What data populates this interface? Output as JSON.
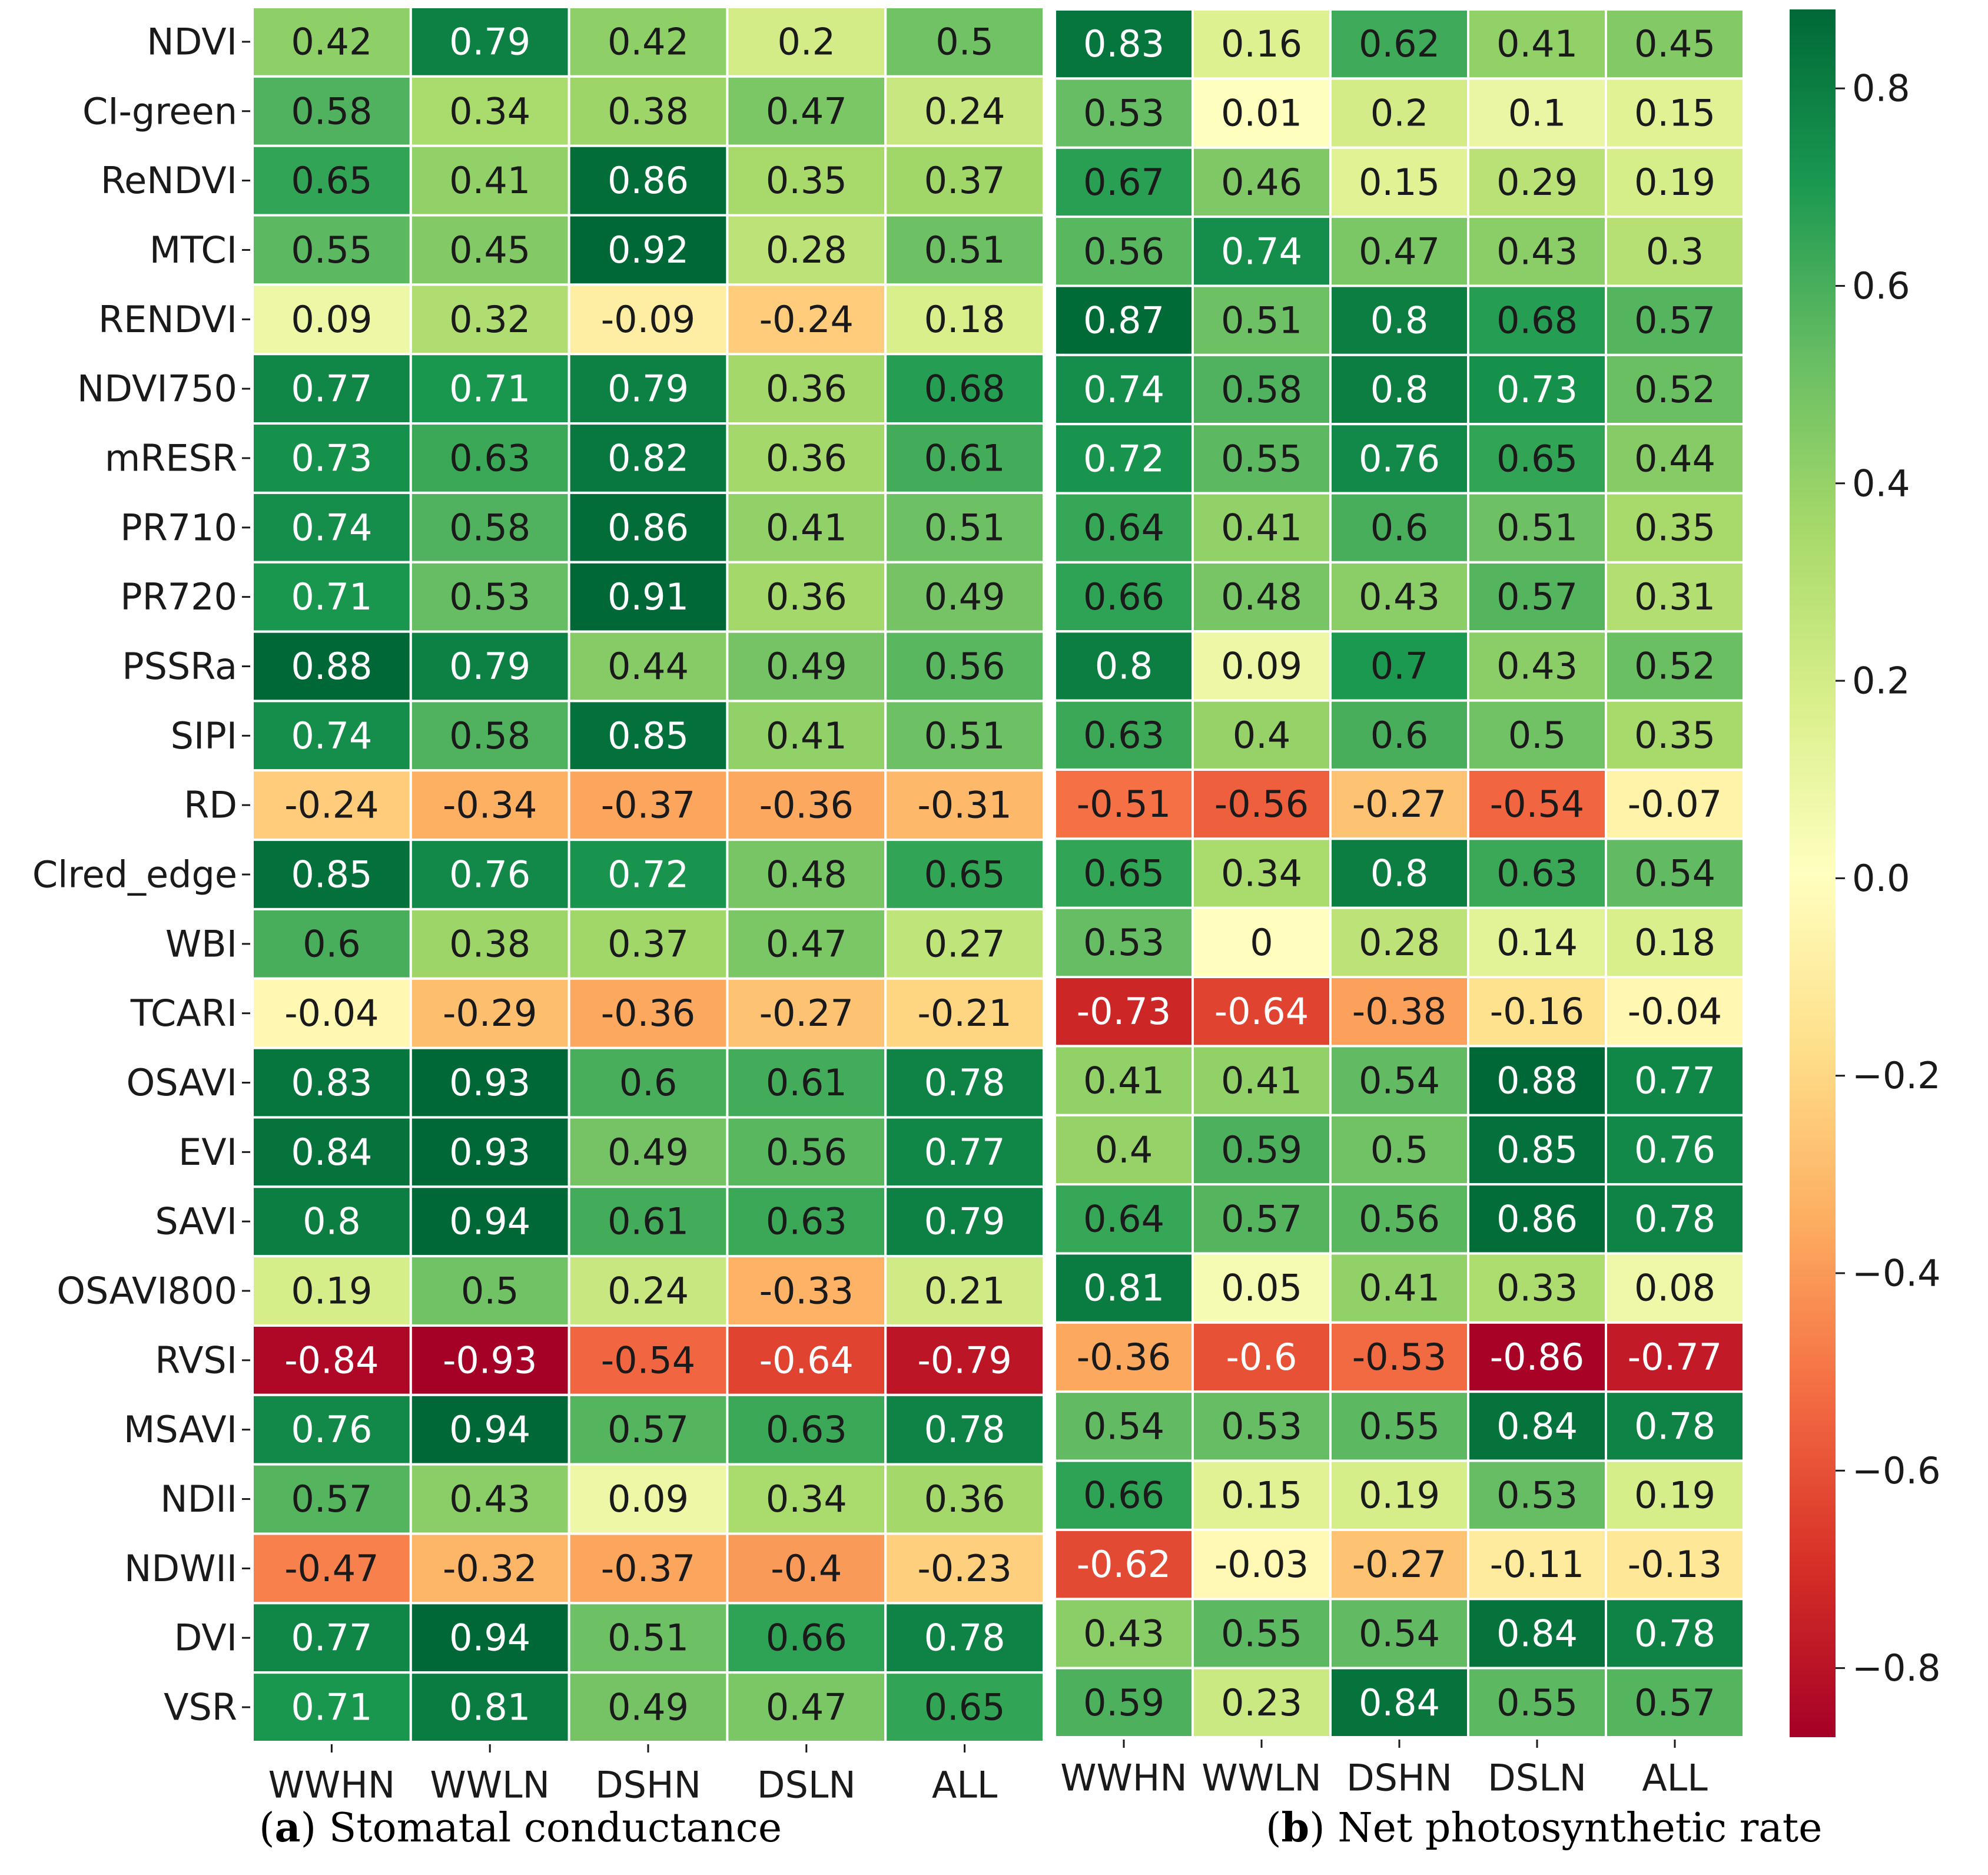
{
  "chart_data": [
    {
      "type": "heatmap",
      "panel_letter": "a",
      "caption": "Stomatal conductance",
      "rows": [
        "NDVI",
        "CI-green",
        "ReNDVI",
        "MTCI",
        "RENDVI",
        "NDVI750",
        "mRESR",
        "PR710",
        "PR720",
        "PSSRa",
        "SIPI",
        "RD",
        "Clred_edge",
        "WBI",
        "TCARI",
        "OSAVI",
        "EVI",
        "SAVI",
        "OSAVI800",
        "RVSI",
        "MSAVI",
        "NDII",
        "NDWII",
        "DVI",
        "VSR"
      ],
      "columns": [
        "WWHN",
        "WWLN",
        "DSHN",
        "DSLN",
        "ALL"
      ],
      "values": [
        [
          0.42,
          0.79,
          0.42,
          0.2,
          0.5
        ],
        [
          0.58,
          0.34,
          0.38,
          0.47,
          0.24
        ],
        [
          0.65,
          0.41,
          0.86,
          0.35,
          0.37
        ],
        [
          0.55,
          0.45,
          0.92,
          0.28,
          0.51
        ],
        [
          0.09,
          0.32,
          -0.09,
          -0.24,
          0.18
        ],
        [
          0.77,
          0.71,
          0.79,
          0.36,
          0.68
        ],
        [
          0.73,
          0.63,
          0.82,
          0.36,
          0.61
        ],
        [
          0.74,
          0.58,
          0.86,
          0.41,
          0.51
        ],
        [
          0.71,
          0.53,
          0.91,
          0.36,
          0.49
        ],
        [
          0.88,
          0.79,
          0.44,
          0.49,
          0.56
        ],
        [
          0.74,
          0.58,
          0.85,
          0.41,
          0.51
        ],
        [
          -0.24,
          -0.34,
          -0.37,
          -0.36,
          -0.31
        ],
        [
          0.85,
          0.76,
          0.72,
          0.48,
          0.65
        ],
        [
          0.6,
          0.38,
          0.37,
          0.47,
          0.27
        ],
        [
          -0.04,
          -0.29,
          -0.36,
          -0.27,
          -0.21
        ],
        [
          0.83,
          0.93,
          0.6,
          0.61,
          0.78
        ],
        [
          0.84,
          0.93,
          0.49,
          0.56,
          0.77
        ],
        [
          0.8,
          0.94,
          0.61,
          0.63,
          0.79
        ],
        [
          0.19,
          0.5,
          0.24,
          -0.33,
          0.21
        ],
        [
          -0.84,
          -0.93,
          -0.54,
          -0.64,
          -0.79
        ],
        [
          0.76,
          0.94,
          0.57,
          0.63,
          0.78
        ],
        [
          0.57,
          0.43,
          0.09,
          0.34,
          0.36
        ],
        [
          -0.47,
          -0.32,
          -0.37,
          -0.4,
          -0.23
        ],
        [
          0.77,
          0.94,
          0.51,
          0.66,
          0.78
        ],
        [
          0.71,
          0.81,
          0.49,
          0.47,
          0.65
        ]
      ]
    },
    {
      "type": "heatmap",
      "panel_letter": "b",
      "caption": "Net photosynthetic rate",
      "rows": [
        "NDVI",
        "CI-green",
        "ReNDVI",
        "MTCI",
        "RENDVI",
        "NDVI750",
        "mRESR",
        "PR710",
        "PR720",
        "PSSRa",
        "SIPI",
        "RD",
        "Clred_edge",
        "WBI",
        "TCARI",
        "OSAVI",
        "EVI",
        "SAVI",
        "OSAVI800",
        "RVSI",
        "MSAVI",
        "NDII",
        "NDWII",
        "DVI",
        "VSR"
      ],
      "columns": [
        "WWHN",
        "WWLN",
        "DSHN",
        "DSLN",
        "ALL"
      ],
      "values": [
        [
          0.83,
          0.16,
          0.62,
          0.41,
          0.45
        ],
        [
          0.53,
          0.01,
          0.2,
          0.1,
          0.15
        ],
        [
          0.67,
          0.46,
          0.15,
          0.29,
          0.19
        ],
        [
          0.56,
          0.74,
          0.47,
          0.43,
          0.3
        ],
        [
          0.87,
          0.51,
          0.8,
          0.68,
          0.57
        ],
        [
          0.74,
          0.58,
          0.8,
          0.73,
          0.52
        ],
        [
          0.72,
          0.55,
          0.76,
          0.65,
          0.44
        ],
        [
          0.64,
          0.41,
          0.6,
          0.51,
          0.35
        ],
        [
          0.66,
          0.48,
          0.43,
          0.57,
          0.31
        ],
        [
          0.8,
          0.09,
          0.7,
          0.43,
          0.52
        ],
        [
          0.63,
          0.4,
          0.6,
          0.5,
          0.35
        ],
        [
          -0.51,
          -0.56,
          -0.27,
          -0.54,
          -0.07
        ],
        [
          0.65,
          0.34,
          0.8,
          0.63,
          0.54
        ],
        [
          0.53,
          0,
          0.28,
          0.14,
          0.18
        ],
        [
          -0.73,
          -0.64,
          -0.38,
          -0.16,
          -0.04
        ],
        [
          0.41,
          0.41,
          0.54,
          0.88,
          0.77
        ],
        [
          0.4,
          0.59,
          0.5,
          0.85,
          0.76
        ],
        [
          0.64,
          0.57,
          0.56,
          0.86,
          0.78
        ],
        [
          0.81,
          0.05,
          0.41,
          0.33,
          0.08
        ],
        [
          -0.36,
          -0.6,
          -0.53,
          -0.86,
          -0.77
        ],
        [
          0.54,
          0.53,
          0.55,
          0.84,
          0.78
        ],
        [
          0.66,
          0.15,
          0.19,
          0.53,
          0.19
        ],
        [
          -0.62,
          -0.03,
          -0.27,
          -0.11,
          -0.13
        ],
        [
          0.43,
          0.55,
          0.54,
          0.84,
          0.78
        ],
        [
          0.59,
          0.23,
          0.84,
          0.55,
          0.57
        ]
      ]
    }
  ],
  "colorbar": {
    "colormap": "RdYlGn",
    "range": [
      -0.87,
      0.88
    ],
    "ticks": [
      0.8,
      0.6,
      0.4,
      0.2,
      0.0,
      -0.2,
      -0.4,
      -0.6,
      -0.8
    ],
    "tick_labels": [
      "0.8",
      "0.6",
      "0.4",
      "0.2",
      "0.0",
      "−0.2",
      "−0.4",
      "−0.6",
      "−0.8"
    ]
  }
}
